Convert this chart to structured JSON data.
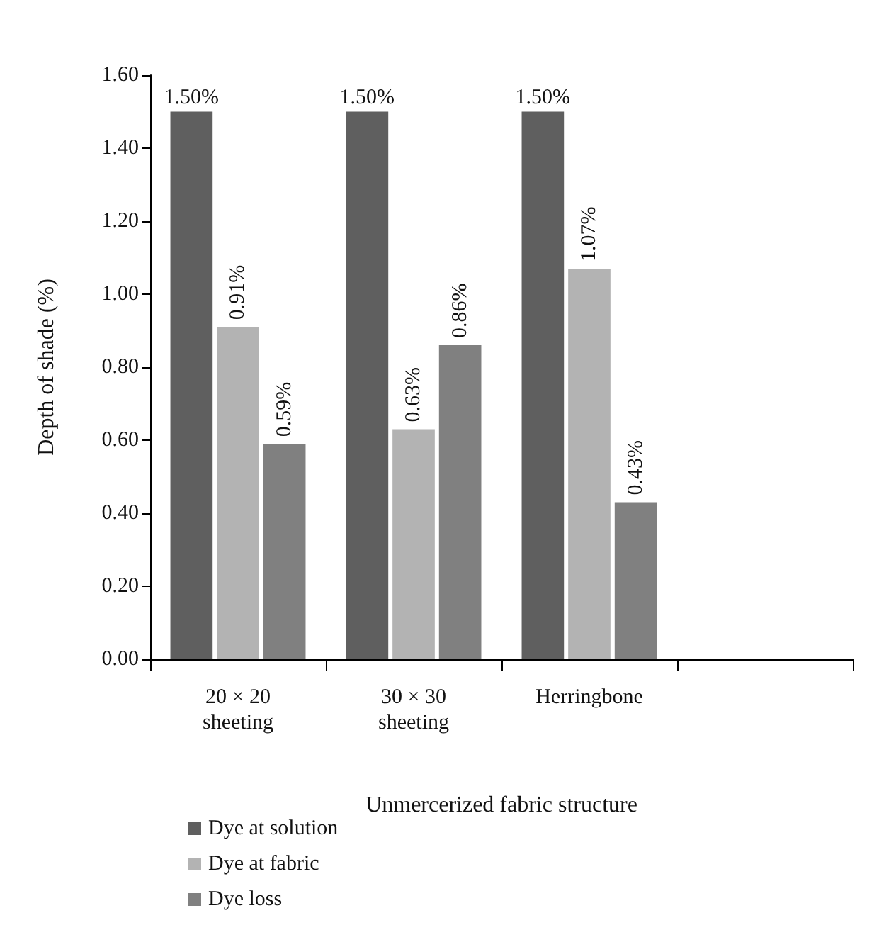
{
  "chart_data": {
    "type": "bar",
    "xlabel": "Unmercerized fabric structure",
    "ylabel": "Depth of shade (%)",
    "categories": [
      "20 × 20\nsheeting",
      "30 × 30\nsheeting",
      "Herringbone",
      null
    ],
    "series": [
      {
        "name": "Dye at solution",
        "color": "#5f5f5f",
        "values": [
          1.5,
          1.5,
          1.5,
          null
        ],
        "value_labels": [
          "1.50%",
          "1.50%",
          "1.50%",
          null
        ]
      },
      {
        "name": "Dye at fabric",
        "color": "#b3b3b3",
        "values": [
          0.91,
          0.63,
          1.07,
          null
        ],
        "value_labels": [
          "0.91%",
          "0.63%",
          "1.07%",
          null
        ]
      },
      {
        "name": "Dye loss",
        "color": "#808080",
        "values": [
          0.59,
          0.86,
          0.43,
          null
        ],
        "value_labels": [
          "0.59%",
          "0.86%",
          "0.43%",
          null
        ]
      }
    ],
    "ylim": [
      0,
      1.6
    ],
    "yticks": [
      {
        "value": 0,
        "label": "0.00"
      },
      {
        "value": 0.2,
        "label": "0.20"
      },
      {
        "value": 0.4,
        "label": "0.40"
      },
      {
        "value": 0.6,
        "label": "0.60"
      },
      {
        "value": 0.8,
        "label": "0.80"
      },
      {
        "value": 1,
        "label": "1.00"
      },
      {
        "value": 1.2,
        "label": "1.20"
      },
      {
        "value": 1.4,
        "label": "1.40"
      },
      {
        "value": 1.6,
        "label": "1.60"
      }
    ],
    "grid": false,
    "legend": "bottom left"
  }
}
